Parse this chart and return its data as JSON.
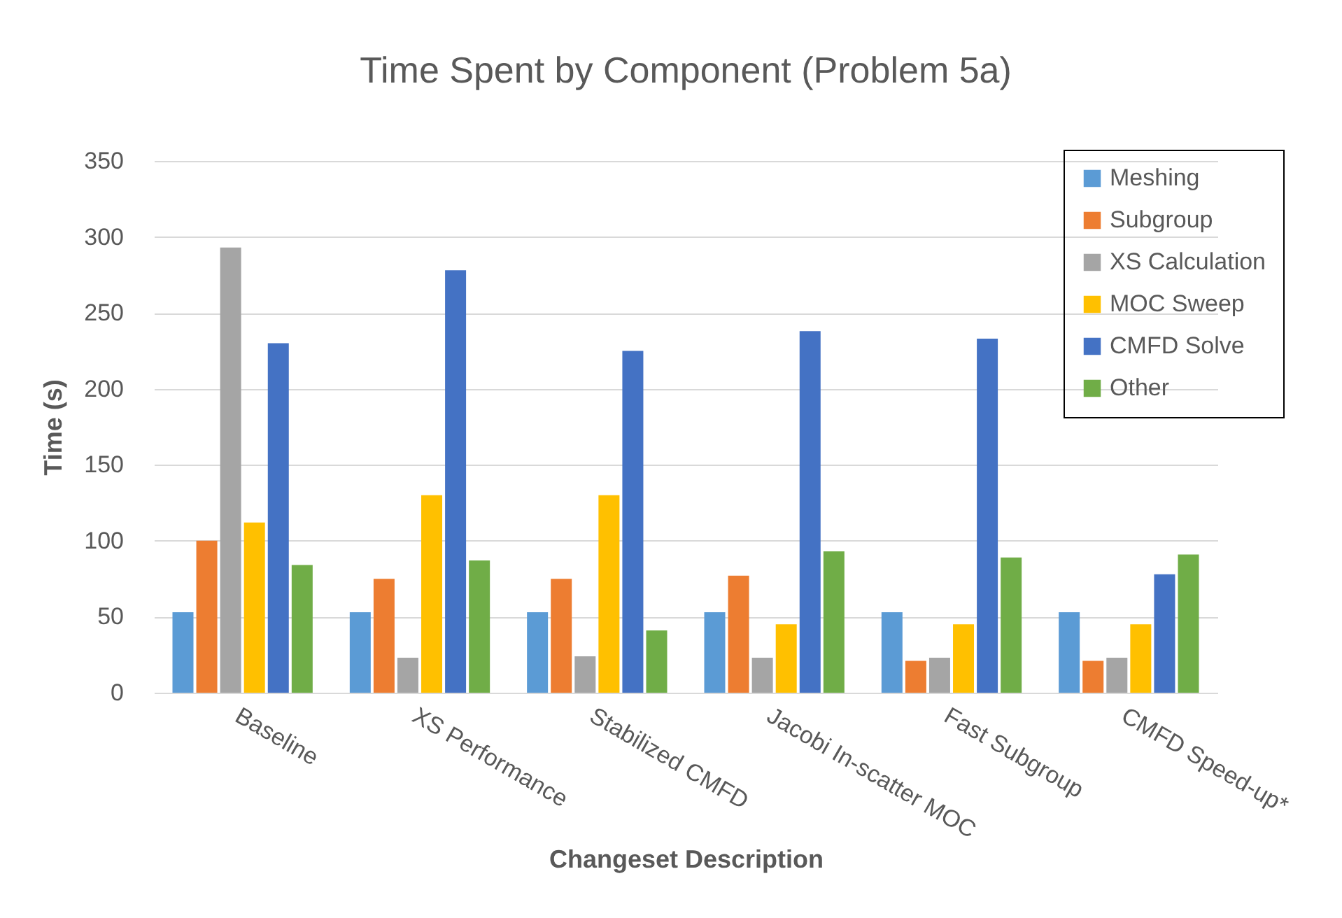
{
  "chart_data": {
    "type": "bar",
    "title": "Time Spent by Component (Problem 5a)",
    "xlabel": "Changeset Description",
    "ylabel": "Time (s)",
    "categories": [
      "Baseline",
      "XS Performance",
      "Stabilized CMFD",
      "Jacobi In-scatter MOC",
      "Fast Subgroup",
      "CMFD Speed-up*"
    ],
    "series": [
      {
        "name": "Meshing",
        "color": "#5b9bd5",
        "values": [
          53,
          53,
          53,
          53,
          53,
          53
        ]
      },
      {
        "name": "Subgroup",
        "color": "#ed7d31",
        "values": [
          100,
          75,
          75,
          77,
          21,
          21
        ]
      },
      {
        "name": "XS Calculation",
        "color": "#a5a5a5",
        "values": [
          293,
          23,
          24,
          23,
          23,
          23
        ]
      },
      {
        "name": "MOC Sweep",
        "color": "#ffc000",
        "values": [
          112,
          130,
          130,
          45,
          45,
          45
        ]
      },
      {
        "name": "CMFD Solve",
        "color": "#4472c4",
        "values": [
          230,
          278,
          225,
          238,
          233,
          78
        ]
      },
      {
        "name": "Other",
        "color": "#70ad47",
        "values": [
          84,
          87,
          41,
          93,
          89,
          91
        ]
      }
    ],
    "ylim": [
      0,
      350
    ],
    "yticks": [
      0,
      50,
      100,
      150,
      200,
      250,
      300,
      350
    ],
    "grid": "y",
    "legend": "top right"
  }
}
